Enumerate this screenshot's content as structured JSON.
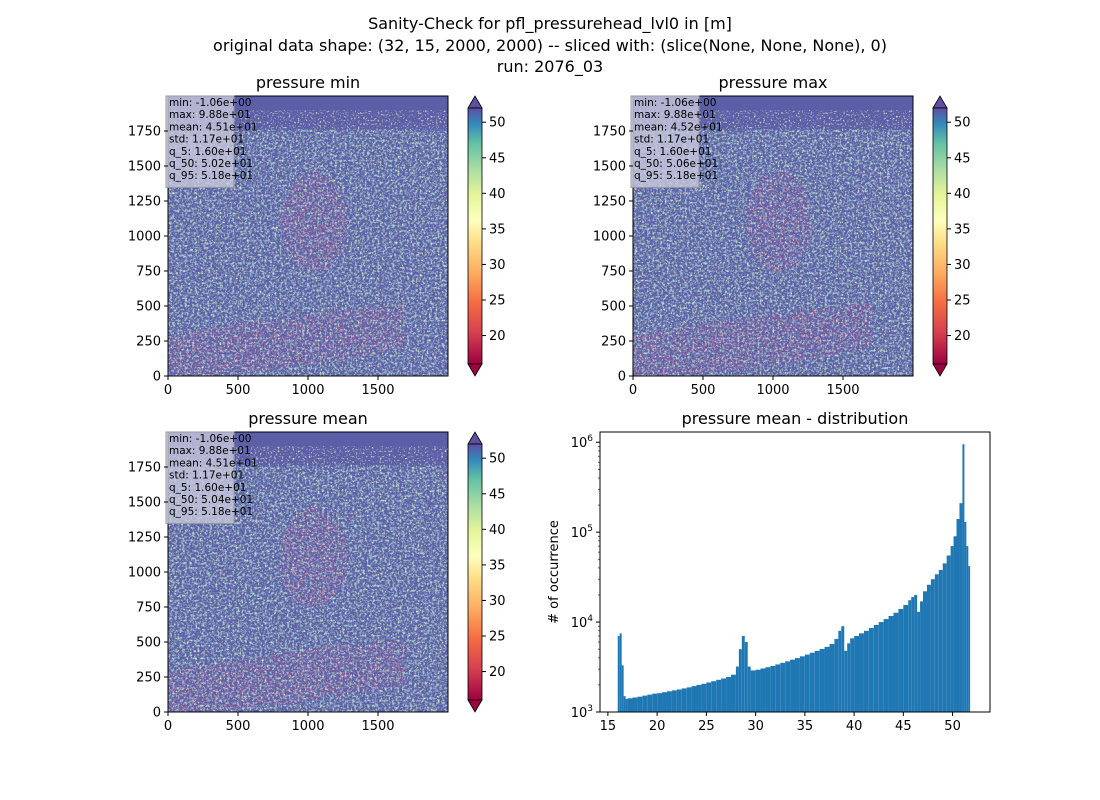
{
  "figure": {
    "title_lines": [
      "Sanity-Check for pfl_pressurehead_lvl0 in [m]",
      "original data shape: (32, 15, 2000, 2000) -- sliced with: (slice(None, None, None), 0)",
      "run: 2076_03"
    ]
  },
  "panels": [
    {
      "title": "pressure min",
      "stats": [
        "min: -1.06e+00",
        "max: 9.88e+01",
        "mean: 4.51e+01",
        "std: 1.17e+01",
        "q_5: 1.60e+01",
        "q_50: 5.02e+01",
        "q_95: 5.18e+01"
      ]
    },
    {
      "title": "pressure max",
      "stats": [
        "min: -1.06e+00",
        "max: 9.88e+01",
        "mean: 4.52e+01",
        "std: 1.17e+01",
        "q_5: 1.60e+01",
        "q_50: 5.06e+01",
        "q_95: 5.18e+01"
      ]
    },
    {
      "title": "pressure mean",
      "stats": [
        "min: -1.06e+00",
        "max: 9.88e+01",
        "mean: 4.51e+01",
        "std: 1.17e+01",
        "q_5: 1.60e+01",
        "q_50: 5.04e+01",
        "q_95: 5.18e+01"
      ]
    }
  ],
  "chart_data": [
    {
      "type": "heatmap",
      "title": "pressure min",
      "x_ticks": [
        0,
        500,
        1000,
        1500
      ],
      "y_ticks": [
        0,
        250,
        500,
        750,
        1000,
        1250,
        1500,
        1750
      ],
      "xlim": [
        0,
        2000
      ],
      "ylim": [
        0,
        2000
      ],
      "colorbar": {
        "ticks": [
          20,
          25,
          30,
          35,
          40,
          45,
          50
        ],
        "range": [
          16,
          52
        ],
        "extend": "both",
        "colormap": "Spectral"
      }
    },
    {
      "type": "heatmap",
      "title": "pressure max",
      "x_ticks": [
        0,
        500,
        1000,
        1500
      ],
      "y_ticks": [
        0,
        250,
        500,
        750,
        1000,
        1250,
        1500,
        1750
      ],
      "xlim": [
        0,
        2000
      ],
      "ylim": [
        0,
        2000
      ],
      "colorbar": {
        "ticks": [
          20,
          25,
          30,
          35,
          40,
          45,
          50
        ],
        "range": [
          16,
          52
        ],
        "extend": "both",
        "colormap": "Spectral"
      }
    },
    {
      "type": "heatmap",
      "title": "pressure mean",
      "x_ticks": [
        0,
        500,
        1000,
        1500
      ],
      "y_ticks": [
        0,
        250,
        500,
        750,
        1000,
        1250,
        1500,
        1750
      ],
      "xlim": [
        0,
        2000
      ],
      "ylim": [
        0,
        2000
      ],
      "colorbar": {
        "ticks": [
          20,
          25,
          30,
          35,
          40,
          45,
          50
        ],
        "range": [
          16,
          52
        ],
        "extend": "both",
        "colormap": "Spectral"
      }
    },
    {
      "type": "bar",
      "title": "pressure mean - distribution",
      "xlabel": "",
      "ylabel": "# of occurrence",
      "yscale": "log",
      "xlim": [
        14.2,
        53.8
      ],
      "ylim": [
        1000,
        1300000
      ],
      "x_ticks": [
        15,
        20,
        25,
        30,
        35,
        40,
        45,
        50
      ],
      "y_ticks": [
        {
          "value": 1000,
          "base": "10",
          "exp": "3"
        },
        {
          "value": 10000,
          "base": "10",
          "exp": "4"
        },
        {
          "value": 100000,
          "base": "10",
          "exp": "5"
        },
        {
          "value": 1000000,
          "base": "10",
          "exp": "6"
        }
      ],
      "bin_width": 0.18,
      "bins": [
        [
          16.0,
          7000
        ],
        [
          16.2,
          7500
        ],
        [
          16.4,
          3300
        ],
        [
          16.6,
          1500
        ],
        [
          16.8,
          1400
        ],
        [
          17.0,
          1420
        ],
        [
          17.5,
          1450
        ],
        [
          18.0,
          1480
        ],
        [
          18.5,
          1520
        ],
        [
          19.0,
          1560
        ],
        [
          19.5,
          1600
        ],
        [
          20.0,
          1620
        ],
        [
          20.5,
          1660
        ],
        [
          21.0,
          1700
        ],
        [
          21.5,
          1740
        ],
        [
          22.0,
          1780
        ],
        [
          22.5,
          1830
        ],
        [
          23.0,
          1880
        ],
        [
          23.5,
          1940
        ],
        [
          24.0,
          2000
        ],
        [
          24.5,
          2060
        ],
        [
          25.0,
          2130
        ],
        [
          25.5,
          2200
        ],
        [
          26.0,
          2280
        ],
        [
          26.5,
          2360
        ],
        [
          27.0,
          2450
        ],
        [
          27.5,
          2600
        ],
        [
          28.0,
          3200
        ],
        [
          28.3,
          5000
        ],
        [
          28.6,
          7000
        ],
        [
          28.9,
          6000
        ],
        [
          29.2,
          3200
        ],
        [
          29.5,
          2900
        ],
        [
          30.0,
          2950
        ],
        [
          30.5,
          3050
        ],
        [
          31.0,
          3150
        ],
        [
          31.5,
          3250
        ],
        [
          32.0,
          3380
        ],
        [
          32.5,
          3520
        ],
        [
          33.0,
          3660
        ],
        [
          33.5,
          3820
        ],
        [
          34.0,
          3980
        ],
        [
          34.5,
          4160
        ],
        [
          35.0,
          4350
        ],
        [
          35.5,
          4560
        ],
        [
          36.0,
          4780
        ],
        [
          36.5,
          5020
        ],
        [
          37.0,
          5300
        ],
        [
          37.5,
          5700
        ],
        [
          38.0,
          6500
        ],
        [
          38.4,
          8000
        ],
        [
          38.7,
          9000
        ],
        [
          39.0,
          4800
        ],
        [
          39.3,
          5800
        ],
        [
          39.6,
          6600
        ],
        [
          40.0,
          7000
        ],
        [
          40.5,
          7500
        ],
        [
          41.0,
          8000
        ],
        [
          41.5,
          8600
        ],
        [
          42.0,
          9300
        ],
        [
          42.5,
          10000
        ],
        [
          43.0,
          10800
        ],
        [
          43.5,
          11700
        ],
        [
          44.0,
          12700
        ],
        [
          44.5,
          14000
        ],
        [
          45.0,
          15500
        ],
        [
          45.5,
          17500
        ],
        [
          45.8,
          19000
        ],
        [
          46.1,
          20000
        ],
        [
          46.4,
          13000
        ],
        [
          46.7,
          17000
        ],
        [
          47.0,
          22000
        ],
        [
          47.4,
          26000
        ],
        [
          47.8,
          30000
        ],
        [
          48.2,
          34000
        ],
        [
          48.6,
          38000
        ],
        [
          49.0,
          45000
        ],
        [
          49.4,
          55000
        ],
        [
          49.8,
          70000
        ],
        [
          50.1,
          90000
        ],
        [
          50.4,
          140000
        ],
        [
          50.7,
          210000
        ],
        [
          51.0,
          950000
        ],
        [
          51.2,
          130000
        ],
        [
          51.4,
          70000
        ],
        [
          51.6,
          42000
        ]
      ]
    }
  ]
}
